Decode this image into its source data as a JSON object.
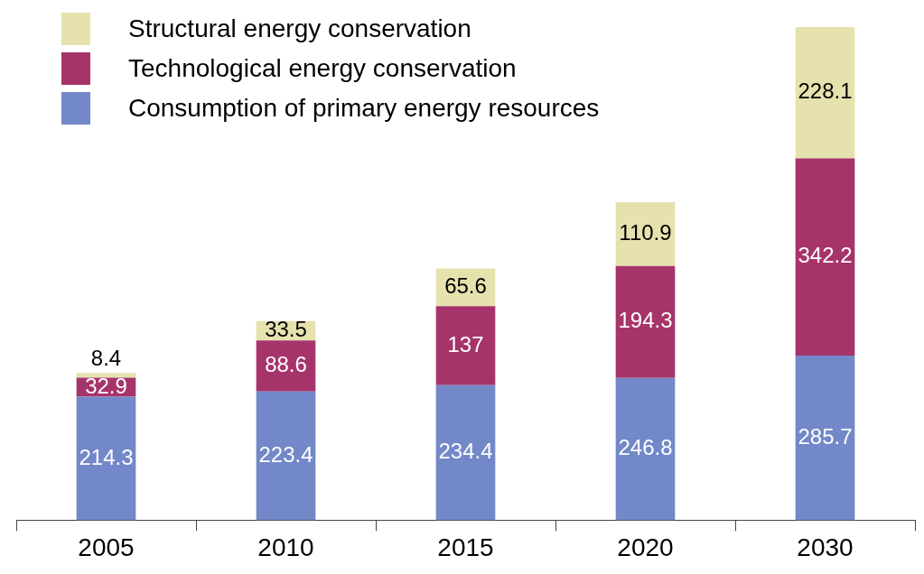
{
  "chart_data": {
    "type": "bar",
    "stacked": true,
    "relative": false,
    "data_labels": true,
    "legend": "top left",
    "grid": false,
    "categories": [
      "2005",
      "2010",
      "2015",
      "2020",
      "2030"
    ],
    "series": [
      {
        "name": "Consumption of primary energy resources",
        "color": "#7388c8",
        "values": [
          214.3,
          223.4,
          234.4,
          246.8,
          285.7
        ]
      },
      {
        "name": "Technological energy conservation",
        "color": "#a6346a",
        "values": [
          32.9,
          88.6,
          137,
          194.3,
          342.2
        ]
      },
      {
        "name": "Structural energy conservation",
        "color": "#e6e2ae",
        "values": [
          8.4,
          33.5,
          65.6,
          110.9,
          228.1
        ]
      }
    ]
  }
}
